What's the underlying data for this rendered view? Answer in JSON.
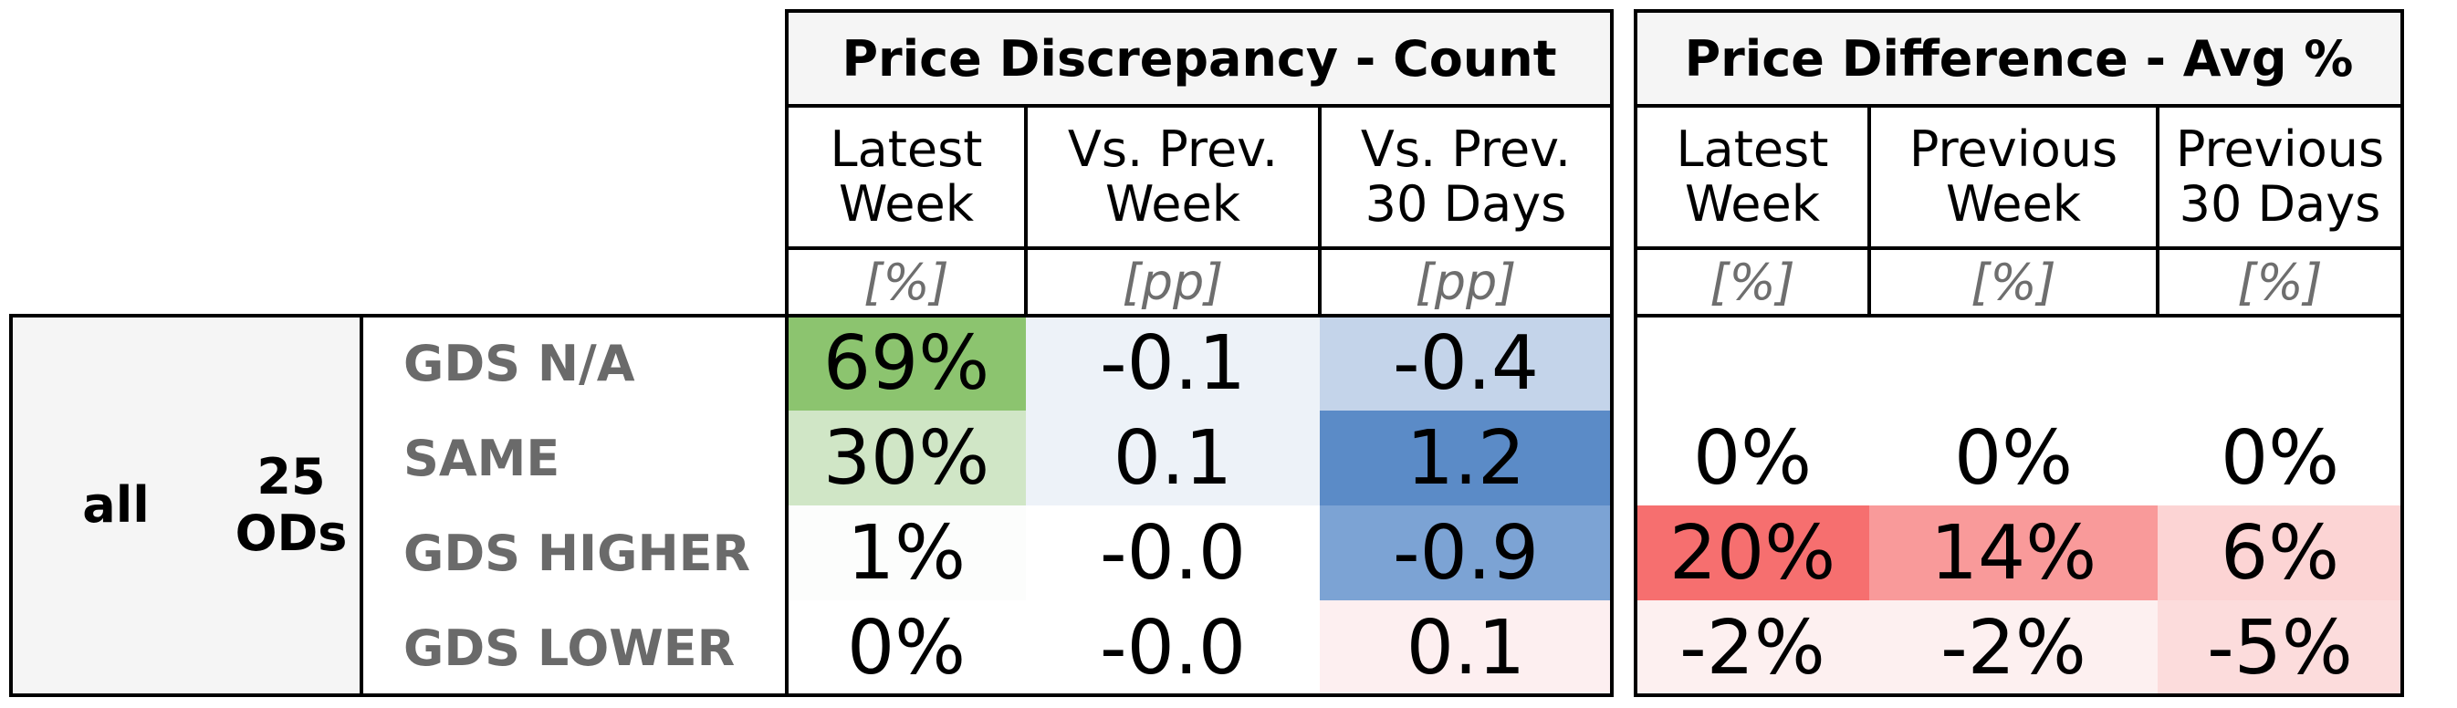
{
  "chart_data": {
    "type": "table",
    "panels": [
      {
        "title": "Price Discrepancy - Count",
        "columns": [
          {
            "header": "Latest\nWeek",
            "unit": "[%]"
          },
          {
            "header": "Vs. Prev.\nWeek",
            "unit": "[pp]"
          },
          {
            "header": "Vs. Prev.\n30 Days",
            "unit": "[pp]"
          }
        ],
        "cells": [
          [
            {
              "text": "69%",
              "color": "#8cc46f"
            },
            {
              "text": "-0.1",
              "color": "#edf2f8"
            },
            {
              "text": "-0.4",
              "color": "#c4d4ea"
            }
          ],
          [
            {
              "text": "30%",
              "color": "#d0e6c6"
            },
            {
              "text": "0.1",
              "color": "#edf2f8"
            },
            {
              "text": "1.2",
              "color": "#5b8bc7"
            }
          ],
          [
            {
              "text": "1%",
              "color": "#fcfdfc"
            },
            {
              "text": "-0.0",
              "color": "#ffffff"
            },
            {
              "text": "-0.9",
              "color": "#7ca3d4"
            }
          ],
          [
            {
              "text": "0%",
              "color": "#ffffff"
            },
            {
              "text": "-0.0",
              "color": "#ffffff"
            },
            {
              "text": "0.1",
              "color": "#fdeff0"
            }
          ]
        ]
      },
      {
        "title": "Price Difference - Avg %",
        "columns": [
          {
            "header": "Latest\nWeek",
            "unit": "[%]"
          },
          {
            "header": "Previous\nWeek",
            "unit": "[%]"
          },
          {
            "header": "Previous\n30 Days",
            "unit": "[%]"
          }
        ],
        "cells": [
          [
            {
              "text": "",
              "color": "#ffffff"
            },
            {
              "text": "",
              "color": "#ffffff"
            },
            {
              "text": "",
              "color": "#ffffff"
            }
          ],
          [
            {
              "text": "0%",
              "color": "#ffffff"
            },
            {
              "text": "0%",
              "color": "#ffffff"
            },
            {
              "text": "0%",
              "color": "#ffffff"
            }
          ],
          [
            {
              "text": "20%",
              "color": "#f66f6f"
            },
            {
              "text": "14%",
              "color": "#f99a9a"
            },
            {
              "text": "6%",
              "color": "#fcd4d4"
            }
          ],
          [
            {
              "text": "-2%",
              "color": "#fdf0f0"
            },
            {
              "text": "-2%",
              "color": "#fdf0f0"
            },
            {
              "text": "-5%",
              "color": "#fcdcdc"
            }
          ]
        ]
      }
    ],
    "row_group": {
      "level1": "all",
      "level2": "25\nODs"
    },
    "rows": [
      "GDS N/A",
      "SAME",
      "GDS HIGHER",
      "GDS LOWER"
    ]
  }
}
